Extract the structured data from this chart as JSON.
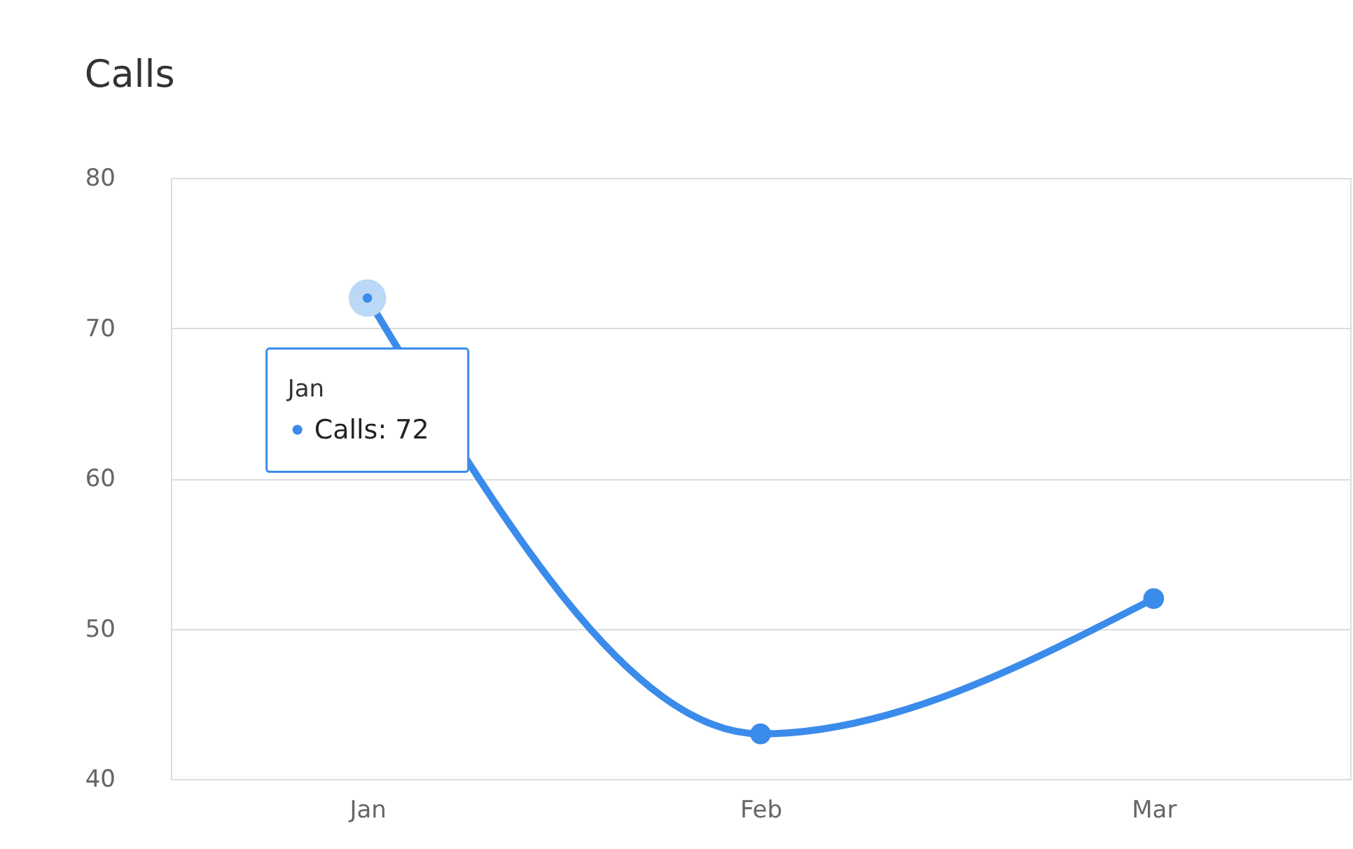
{
  "chart_data": {
    "type": "line",
    "title": "Calls",
    "categories": [
      "Jan",
      "Feb",
      "Mar"
    ],
    "series": [
      {
        "color": "#3b8beb",
        "values": [
          72,
          43,
          52
        ]
      }
    ],
    "ylim": [
      40,
      80
    ],
    "yticks": [
      40,
      50,
      60,
      70,
      80
    ],
    "grid": "y",
    "marker": "circle",
    "line_style": "solid",
    "legend": false,
    "annotations": [
      "Jan",
      "Calls: 72"
    ]
  }
}
